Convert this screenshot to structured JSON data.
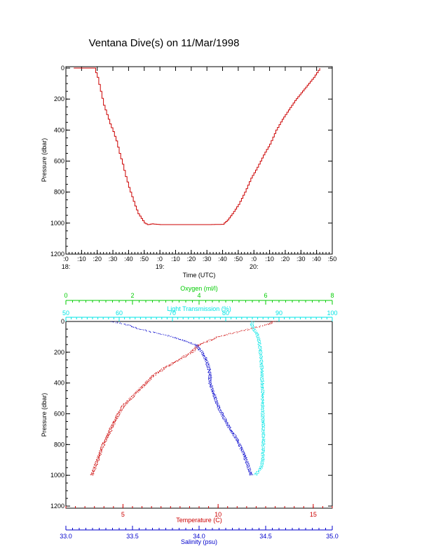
{
  "title": "Ventana Dive(s) on 11/Mar/1998",
  "colors": {
    "axis": "#000000",
    "temperature": "#cc0000",
    "salinity": "#0000cc",
    "oxygen": "#00cc00",
    "light": "#00e5e5"
  },
  "chart_data": [
    {
      "type": "line",
      "name": "pressure-vs-time",
      "xlabel": "Time (UTC)",
      "ylabel": "Pressure (dbar)",
      "xlim_minutes": [
        0,
        170
      ],
      "ylim": [
        0,
        1200
      ],
      "y_inverted": true,
      "xticks": [
        {
          "t": 0,
          "minute": ":0",
          "hour": "18:"
        },
        {
          "t": 10,
          "minute": ":10",
          "hour": ""
        },
        {
          "t": 20,
          "minute": ":20",
          "hour": ""
        },
        {
          "t": 30,
          "minute": ":30",
          "hour": ""
        },
        {
          "t": 40,
          "minute": ":40",
          "hour": ""
        },
        {
          "t": 50,
          "minute": ":50",
          "hour": ""
        },
        {
          "t": 60,
          "minute": ":0",
          "hour": "19:"
        },
        {
          "t": 70,
          "minute": ":10",
          "hour": ""
        },
        {
          "t": 80,
          "minute": ":20",
          "hour": ""
        },
        {
          "t": 90,
          "minute": ":30",
          "hour": ""
        },
        {
          "t": 100,
          "minute": ":40",
          "hour": ""
        },
        {
          "t": 110,
          "minute": ":50",
          "hour": ""
        },
        {
          "t": 120,
          "minute": ":0",
          "hour": "20:"
        },
        {
          "t": 130,
          "minute": ":10",
          "hour": ""
        },
        {
          "t": 140,
          "minute": ":20",
          "hour": ""
        },
        {
          "t": 150,
          "minute": ":30",
          "hour": ""
        },
        {
          "t": 160,
          "minute": ":40",
          "hour": ""
        },
        {
          "t": 170,
          "minute": ":50",
          "hour": ""
        }
      ],
      "yticks": [
        "0",
        "200",
        "400",
        "600",
        "800",
        "1000",
        "1200"
      ],
      "series": [
        {
          "color": "#cc0000",
          "x": [
            5,
            18,
            20,
            22,
            24,
            26,
            28,
            30,
            32,
            34,
            36,
            38,
            40,
            42,
            44,
            46,
            48,
            50,
            52,
            55,
            60,
            70,
            80,
            90,
            100,
            103,
            106,
            108,
            110,
            114,
            118,
            122,
            126,
            130,
            134,
            138,
            142,
            146,
            150,
            154,
            158,
            162
          ],
          "y": [
            0,
            0,
            60,
            150,
            240,
            300,
            360,
            410,
            470,
            550,
            620,
            700,
            770,
            830,
            890,
            940,
            970,
            1000,
            1010,
            1005,
            1010,
            1010,
            1010,
            1010,
            1008,
            980,
            940,
            910,
            880,
            800,
            710,
            640,
            560,
            490,
            400,
            330,
            270,
            210,
            160,
            110,
            60,
            0
          ]
        }
      ]
    },
    {
      "type": "scatter",
      "name": "ctd-profiles",
      "ylabel": "Pressure (dbar)",
      "ylim": [
        0,
        1200
      ],
      "y_inverted": true,
      "yticks": [
        "0",
        "200",
        "400",
        "600",
        "800",
        "1000",
        "1200"
      ],
      "axes": {
        "temperature": {
          "label": "Temperature (C)",
          "lim": [
            2,
            16
          ],
          "ticks": [
            {
              "v": 5,
              "label": "5"
            },
            {
              "v": 10,
              "label": "10"
            },
            {
              "v": 15,
              "label": "15"
            }
          ],
          "color": "#cc0000"
        },
        "salinity": {
          "label": "Salinity (psu)",
          "lim": [
            33.0,
            35.0
          ],
          "ticks": [
            {
              "v": 33.0,
              "label": "33.0"
            },
            {
              "v": 33.5,
              "label": "33.5"
            },
            {
              "v": 34.0,
              "label": "34.0"
            },
            {
              "v": 34.5,
              "label": "34.5"
            },
            {
              "v": 35.0,
              "label": "35.0"
            }
          ],
          "color": "#0000cc"
        },
        "oxygen": {
          "label": "Oxygen (ml/l)",
          "lim": [
            0,
            8
          ],
          "ticks": [
            {
              "v": 0,
              "label": "0"
            },
            {
              "v": 2,
              "label": "2"
            },
            {
              "v": 4,
              "label": "4"
            },
            {
              "v": 6,
              "label": "6"
            },
            {
              "v": 8,
              "label": "8"
            }
          ],
          "color": "#00cc00"
        },
        "light": {
          "label": "Light Transmission (%)",
          "lim": [
            50,
            100
          ],
          "ticks": [
            {
              "v": 50,
              "label": "50"
            },
            {
              "v": 60,
              "label": "60"
            },
            {
              "v": 70,
              "label": "70"
            },
            {
              "v": 80,
              "label": "80"
            },
            {
              "v": 90,
              "label": "90"
            },
            {
              "v": 100,
              "label": "100"
            }
          ],
          "color": "#00e5e5"
        }
      },
      "series": [
        {
          "axis": "temperature",
          "color": "#cc0000",
          "p": [
            0,
            20,
            50,
            100,
            150,
            200,
            250,
            300,
            350,
            400,
            450,
            500,
            550,
            600,
            650,
            700,
            750,
            800,
            850,
            900,
            950,
            1000
          ],
          "v": [
            12.9,
            12.6,
            11.6,
            10.0,
            9.0,
            8.6,
            7.9,
            7.2,
            6.6,
            6.2,
            5.8,
            5.4,
            5.0,
            4.75,
            4.55,
            4.35,
            4.15,
            3.95,
            3.8,
            3.65,
            3.5,
            3.35
          ]
        },
        {
          "axis": "salinity",
          "color": "#0000cc",
          "p": [
            0,
            20,
            50,
            100,
            150,
            200,
            250,
            300,
            350,
            400,
            450,
            500,
            550,
            600,
            650,
            700,
            750,
            800,
            850,
            900,
            950,
            1000
          ],
          "v": [
            33.35,
            33.45,
            33.55,
            33.8,
            33.97,
            34.02,
            34.05,
            34.07,
            34.08,
            34.08,
            34.1,
            34.12,
            34.14,
            34.17,
            34.2,
            34.23,
            34.27,
            34.3,
            34.33,
            34.35,
            34.37,
            34.39
          ]
        },
        {
          "axis": "light",
          "color": "#00e5e5",
          "p": [
            0,
            20,
            50,
            80,
            100,
            150,
            200,
            300,
            400,
            500,
            600,
            700,
            800,
            900,
            950,
            1000
          ],
          "v": [
            85.0,
            84.8,
            85.2,
            85.8,
            86.0,
            86.3,
            86.5,
            86.7,
            86.8,
            86.9,
            86.9,
            87.0,
            87.0,
            86.9,
            86.6,
            85.5
          ]
        }
      ]
    }
  ]
}
